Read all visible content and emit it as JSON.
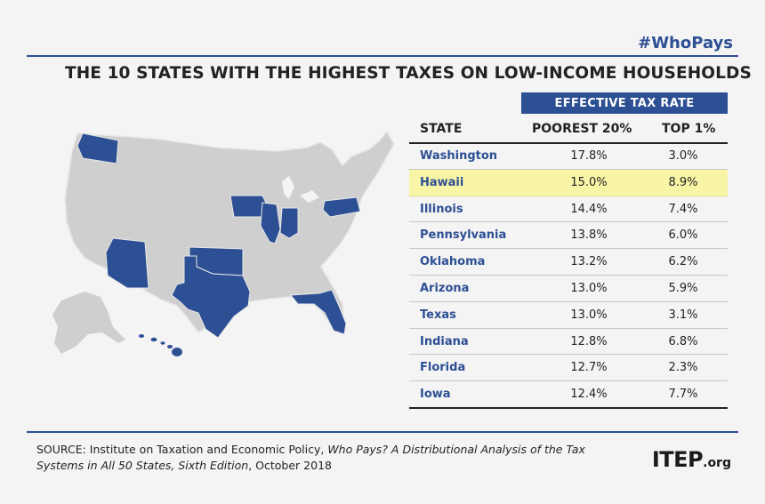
{
  "hashtag": "#WhoPays",
  "title": "THE 10 STATES WITH THE HIGHEST TAXES ON LOW-INCOME HOUSEHOLDS",
  "colors": {
    "highlight_blue": "#2d4f94",
    "map_gray": "#cfcfcf",
    "row_highlight": "#f8f5a6"
  },
  "table": {
    "group_header": "EFFECTIVE TAX RATE",
    "col_state": "STATE",
    "col_poorest": "POOREST 20%",
    "col_top": "TOP 1%"
  },
  "chart_data": {
    "type": "table",
    "title": "THE 10 STATES WITH THE HIGHEST TAXES ON LOW-INCOME HOUSEHOLDS",
    "columns": [
      "STATE",
      "POOREST 20%",
      "TOP 1%"
    ],
    "highlighted_row": "Hawaii",
    "rows": [
      {
        "state": "Washington",
        "poorest": "17.8%",
        "top": "3.0%"
      },
      {
        "state": "Hawaii",
        "poorest": "15.0%",
        "top": "8.9%"
      },
      {
        "state": "Illinois",
        "poorest": "14.4%",
        "top": "7.4%"
      },
      {
        "state": "Pennsylvania",
        "poorest": "13.8%",
        "top": "6.0%"
      },
      {
        "state": "Oklahoma",
        "poorest": "13.2%",
        "top": "6.2%"
      },
      {
        "state": "Arizona",
        "poorest": "13.0%",
        "top": "5.9%"
      },
      {
        "state": "Texas",
        "poorest": "13.0%",
        "top": "3.1%"
      },
      {
        "state": "Indiana",
        "poorest": "12.8%",
        "top": "6.8%"
      },
      {
        "state": "Florida",
        "poorest": "12.7%",
        "top": "2.3%"
      },
      {
        "state": "Iowa",
        "poorest": "12.4%",
        "top": "7.7%"
      }
    ]
  },
  "source": {
    "prefix": "SOURCE: Institute on Taxation and Economic Policy, ",
    "italic": "Who Pays? A Distributional Analysis of the Tax Systems in All 50 States, Sixth Edition",
    "suffix": ", October 2018"
  },
  "logo": {
    "big": "ITEP",
    "small": ".org"
  }
}
